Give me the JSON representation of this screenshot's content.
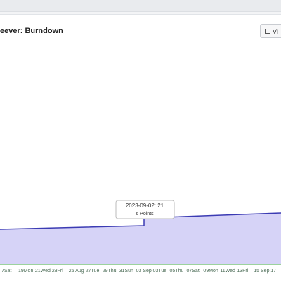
{
  "header": {
    "title": "eever: Burndown",
    "button": "Vi"
  },
  "tooltip": {
    "date_value": "2023-09-02: 21",
    "points": "6 Points"
  },
  "x_labels": [
    "7Sat",
    "19Mon",
    "21Wed",
    "23Fri",
    "25 Aug",
    "27Tue",
    "29Thu",
    "31Sun",
    "03 Sep",
    "03Tue",
    "05Thu",
    "07Sat",
    "09Mon",
    "11Wed",
    "13Fri",
    "15 Sep",
    "17"
  ]
}
